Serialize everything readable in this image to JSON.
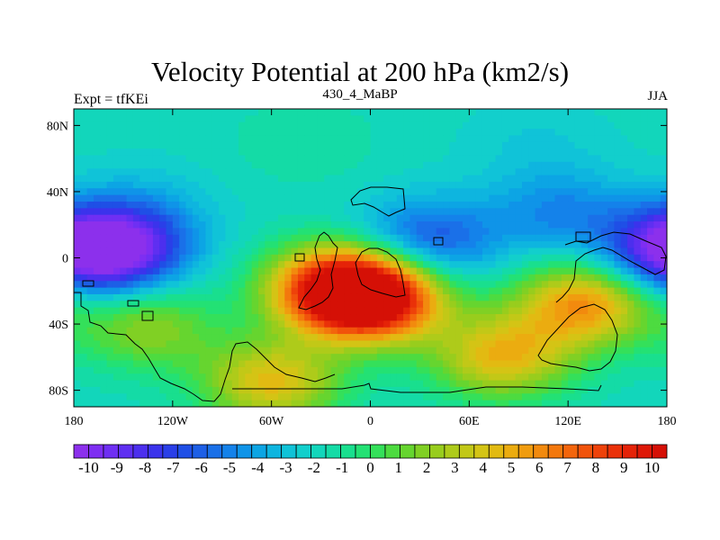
{
  "chart_data": {
    "type": "heatmap",
    "title": "Velocity Potential at 200 hPa (km2/s)",
    "left_label": "Expt = tfKEi",
    "center_label": "430_4_MaBP",
    "right_label": "JJA",
    "x_ticks": [
      "180",
      "120W",
      "60W",
      "0",
      "60E",
      "120E",
      "180"
    ],
    "x_tick_values": [
      -180,
      -120,
      -60,
      0,
      60,
      120,
      180
    ],
    "y_ticks": [
      "80N",
      "40N",
      "0",
      "40S",
      "80S"
    ],
    "y_tick_values": [
      80,
      40,
      0,
      -40,
      -80
    ],
    "xlim": [
      -180,
      180
    ],
    "ylim": [
      -90,
      90
    ],
    "colorbar": {
      "levels": [
        -10,
        -9.5,
        -9,
        -8.5,
        -8,
        -7.5,
        -7,
        -6.5,
        -6,
        -5.5,
        -5,
        -4.5,
        -4,
        -3.5,
        -3,
        -2.5,
        -2,
        -1.5,
        -1,
        -0.5,
        0,
        0.5,
        1,
        1.5,
        2,
        2.5,
        3,
        3.5,
        4,
        4.5,
        5,
        5.5,
        6,
        6.5,
        7,
        7.5,
        8,
        8.5,
        9,
        9.5,
        10
      ],
      "labels": [
        "-10",
        "-9",
        "-8",
        "-7",
        "-6",
        "-5",
        "-4",
        "-3",
        "-2",
        "-1",
        "0",
        "1",
        "2",
        "3",
        "4",
        "5",
        "6",
        "7",
        "8",
        "9",
        "10"
      ],
      "colors": [
        "#8c30ec",
        "#7e2ef2",
        "#6f2ff3",
        "#5f2ff1",
        "#4c2fee",
        "#3b33ec",
        "#2a3fe8",
        "#1f4fe6",
        "#1d5fe6",
        "#1a70e8",
        "#1482ea",
        "#0f94e8",
        "#0ca5e4",
        "#0eb5df",
        "#10c3d8",
        "#12cfcc",
        "#12d6bb",
        "#14dba6",
        "#19df8e",
        "#23e174",
        "#34e05a",
        "#4ddb40",
        "#66d52f",
        "#80d024",
        "#98cd1d",
        "#aecb1a",
        "#c2c817",
        "#d4c415",
        "#e2ba12",
        "#ebac10",
        "#f09c0f",
        "#f28a0e",
        "#f3780d",
        "#f3650c",
        "#f1530b",
        "#ee420a",
        "#ea3109",
        "#e52308",
        "#de1807",
        "#d51006"
      ]
    },
    "field_centers": [
      {
        "lon": -155,
        "lat": 5,
        "value": -9.2
      },
      {
        "lon": -135,
        "lat": 30,
        "value": -3.0
      },
      {
        "lon": 35,
        "lat": 10,
        "value": -6.3
      },
      {
        "lon": 115,
        "lat": 28,
        "value": -4.5
      },
      {
        "lon": 178,
        "lat": 5,
        "value": -6.5
      },
      {
        "lon": -40,
        "lat": 70,
        "value": -1.0
      },
      {
        "lon": 100,
        "lat": 70,
        "value": -2.5
      },
      {
        "lon": 2,
        "lat": -25,
        "value": 9.2
      },
      {
        "lon": -20,
        "lat": -18,
        "value": 7.5
      },
      {
        "lon": 130,
        "lat": -28,
        "value": 5.5
      },
      {
        "lon": -135,
        "lat": -42,
        "value": 2.0
      },
      {
        "lon": 80,
        "lat": -60,
        "value": 4.3
      },
      {
        "lon": -60,
        "lat": -75,
        "value": 4.2
      }
    ]
  }
}
